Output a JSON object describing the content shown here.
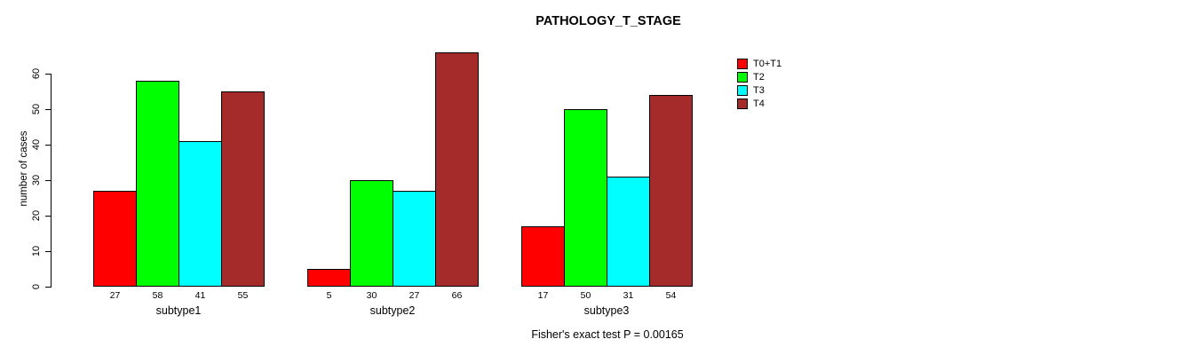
{
  "chart_data": {
    "type": "bar",
    "title": "PATHOLOGY_T_STAGE",
    "xlabel": "",
    "ylabel": "number of cases",
    "categories": [
      "subtype1",
      "subtype2",
      "subtype3"
    ],
    "series": [
      {
        "name": "T0+T1",
        "color": "#FF0000",
        "values": [
          27,
          5,
          17
        ]
      },
      {
        "name": "T2",
        "color": "#00FF00",
        "values": [
          58,
          30,
          50
        ]
      },
      {
        "name": "T3",
        "color": "#00FFFF",
        "values": [
          41,
          27,
          31
        ]
      },
      {
        "name": "T4",
        "color": "#A52A2A",
        "values": [
          55,
          66,
          54
        ]
      }
    ],
    "yticks": [
      0,
      10,
      20,
      30,
      40,
      50,
      60
    ],
    "ylim": [
      0,
      66
    ],
    "grid": false,
    "bar_value_labels": true,
    "legend_position": "top-right",
    "annotation": "Fisher's exact test P = 0.00165",
    "colors": {
      "background": "#FFFFFF",
      "axis": "#000000",
      "text": "#000000"
    }
  }
}
